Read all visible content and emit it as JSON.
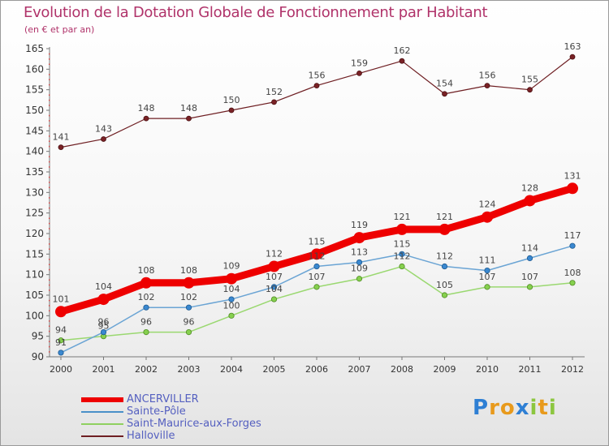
{
  "chart_data": {
    "type": "line",
    "title": "Evolution de la Dotation Globale de Fonctionnement par Habitant",
    "subtitle": "(en € et par an)",
    "xlabel": "",
    "ylabel": "",
    "categories": [
      "2000",
      "2001",
      "2002",
      "2003",
      "2004",
      "2005",
      "2006",
      "2007",
      "2008",
      "2009",
      "2010",
      "2011",
      "2012"
    ],
    "ylim": [
      90,
      165
    ],
    "yticks": [
      90,
      95,
      100,
      105,
      110,
      115,
      120,
      125,
      130,
      135,
      140,
      145,
      150,
      155,
      160,
      165
    ],
    "grid": false,
    "legend_position": "bottom-left",
    "series": [
      {
        "name": "ANCERVILLER",
        "color": "#ee0000",
        "values": [
          101,
          104,
          108,
          108,
          109,
          112,
          115,
          119,
          121,
          121,
          124,
          128,
          131
        ]
      },
      {
        "name": "Sainte-Pôle",
        "color": "#4a90c8",
        "values": [
          91,
          96,
          102,
          102,
          104,
          107,
          112,
          113,
          115,
          112,
          111,
          114,
          117
        ]
      },
      {
        "name": "Saint-Maurice-aux-Forges",
        "color": "#8fd060",
        "values": [
          94,
          95,
          96,
          96,
          100,
          104,
          107,
          109,
          112,
          105,
          107,
          107,
          108
        ]
      },
      {
        "name": "Halloville",
        "color": "#6e1e22",
        "values": [
          141,
          143,
          148,
          148,
          150,
          152,
          156,
          159,
          162,
          154,
          156,
          155,
          163
        ]
      }
    ]
  },
  "logo": {
    "letters": [
      "P",
      "r",
      "o",
      "x",
      "i",
      "t",
      "i"
    ],
    "colors": [
      "#2e7fd4",
      "#e89a1c",
      "#e89a1c",
      "#2e7fd4",
      "#8cc63f",
      "#e89a1c",
      "#8cc63f"
    ]
  }
}
